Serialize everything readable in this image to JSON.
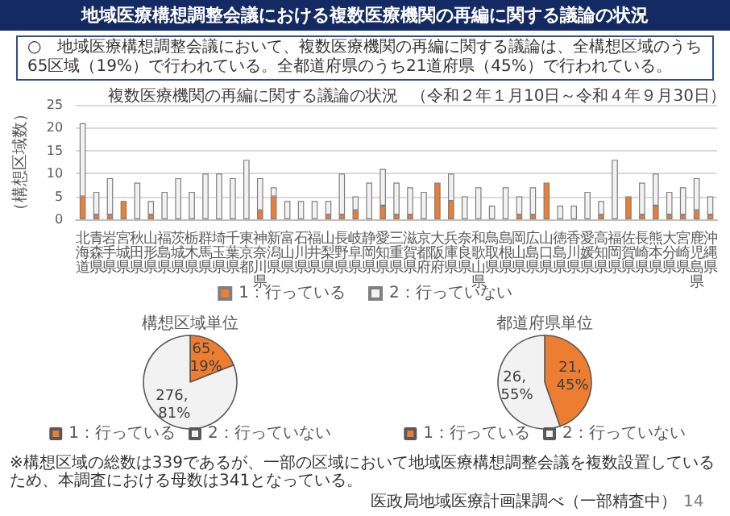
{
  "chart_data": [
    {
      "type": "bar",
      "title": "複数医療機関の再編に関する議論の状況",
      "subtitle": "（令和２年１月10日～令和４年９月30日）",
      "ylabel": "（構想区域数）",
      "annotations": [
        "地域医療構想調整会議における複数医療機関の再編に関する議論の状況",
        "○　地域医療構想調整会議において、複数医療機関の再編に関する議論は、全構想区域のうち65区域（19%）で行われている。全都道府県のうち21道府県（45%）で行われている。",
        "※構想区域の総数は339であるが、一部の区域において地域医療構想調整会議を複数設置しているため、本調査における母数は341となっている。",
        "医政局地域医療計画課調べ（一部精査中）",
        "14"
      ],
      "categories": [
        "北海道",
        "青森県",
        "岩手県",
        "宮城県",
        "秋田県",
        "山形県",
        "福島県",
        "茨城県",
        "栃木県",
        "群馬県",
        "埼玉県",
        "千葉県",
        "東京都",
        "神奈川県",
        "新潟県",
        "富山県",
        "石川県",
        "福井県",
        "山梨県",
        "長野県",
        "岐阜県",
        "静岡県",
        "愛知県",
        "三重県",
        "滋賀県",
        "京都府",
        "大阪府",
        "兵庫県",
        "奈良県",
        "和歌山県",
        "鳥取県",
        "島根県",
        "岡山県",
        "広島県",
        "山口県",
        "徳島県",
        "香川県",
        "愛媛県",
        "高知県",
        "福岡県",
        "佐賀県",
        "長崎県",
        "熊本県",
        "大分県",
        "宮崎県",
        "鹿児島県",
        "沖縄県"
      ],
      "stacked": true,
      "series": [
        {
          "name": "1：行っている",
          "color": "#ed7d31",
          "values": [
            5,
            1,
            1,
            4,
            0,
            1,
            0,
            0,
            0,
            0,
            0,
            0,
            0,
            2,
            5,
            0,
            0,
            0,
            1,
            1,
            2,
            0,
            3,
            1,
            1,
            0,
            8,
            4,
            0,
            0,
            0,
            0,
            1,
            1,
            8,
            0,
            0,
            0,
            1,
            0,
            5,
            1,
            3,
            1,
            1,
            2,
            1
          ]
        },
        {
          "name": "2：行っていない",
          "color": "#f2f2f2",
          "values": [
            16,
            5,
            8,
            0,
            8,
            3,
            6,
            9,
            6,
            10,
            10,
            9,
            13,
            7,
            2,
            4,
            4,
            4,
            3,
            9,
            3,
            8,
            8,
            7,
            6,
            6,
            0,
            6,
            5,
            7,
            3,
            7,
            4,
            6,
            0,
            3,
            3,
            6,
            3,
            13,
            0,
            7,
            7,
            5,
            6,
            7,
            4
          ]
        }
      ],
      "ylim": [
        0,
        25
      ],
      "yticks": [
        0,
        5,
        10,
        15,
        20,
        25
      ],
      "grid": "y",
      "legend": "bottom"
    },
    {
      "type": "pie",
      "title": "構想区域単位",
      "categories": [
        "1：行っている",
        "2：行っていない"
      ],
      "values": [
        65,
        276
      ],
      "colors": [
        "#ed7d31",
        "#f2f2f2"
      ],
      "value_labels": [
        "65, 19%",
        "276, 81%"
      ],
      "legend": "bottom"
    },
    {
      "type": "pie",
      "title": "都道府県単位",
      "categories": [
        "1：行っている",
        "2：行っていない"
      ],
      "values": [
        21,
        26
      ],
      "colors": [
        "#ed7d31",
        "#f2f2f2"
      ],
      "value_labels": [
        "21, 45%",
        "26, 55%"
      ],
      "legend": "bottom"
    }
  ]
}
